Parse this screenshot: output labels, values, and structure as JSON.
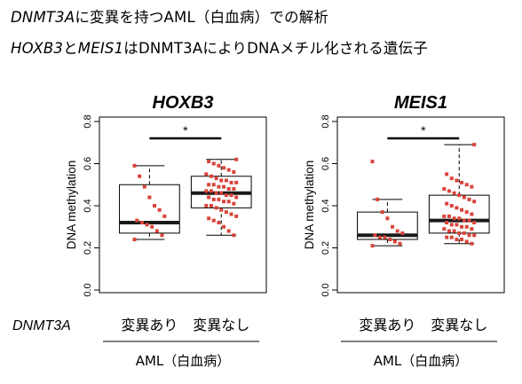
{
  "headline": {
    "line1_gene": "DNMT3A",
    "line1_rest": "に変異を持つAML（白血病）での解析",
    "line2_gene1": "HOXB3",
    "line2_and": "と",
    "line2_gene2": "MEIS1",
    "line2_rest": "はDNMT3AによりDNAメチル化される遺伝子"
  },
  "row_label": "DNMT3A",
  "colors": {
    "point": "#d9443a",
    "box": "#000000",
    "median": "#1a1a1a"
  },
  "chart_data": [
    {
      "type": "box",
      "title": "HOXB3",
      "ylabel": "DNA methylation",
      "ylim": [
        0,
        0.8
      ],
      "yticks": [
        "0.0",
        "0.2",
        "0.4",
        "0.6",
        "0.8"
      ],
      "yticks_values": [
        0,
        0.2,
        0.4,
        0.6,
        0.8
      ],
      "categories": [
        "変異あり",
        "変異なし"
      ],
      "group_label": "AML（白血病）",
      "significance": "*",
      "boxes": [
        {
          "whisker_low": 0.24,
          "q1": 0.27,
          "median": 0.32,
          "q3": 0.5,
          "whisker_high": 0.59,
          "points": [
            0.24,
            0.26,
            0.28,
            0.3,
            0.31,
            0.32,
            0.33,
            0.35,
            0.38,
            0.4,
            0.44,
            0.49,
            0.54,
            0.59
          ]
        },
        {
          "whisker_low": 0.26,
          "q1": 0.39,
          "median": 0.46,
          "q3": 0.54,
          "whisker_high": 0.62,
          "points": [
            0.26,
            0.28,
            0.3,
            0.32,
            0.33,
            0.34,
            0.35,
            0.36,
            0.37,
            0.38,
            0.39,
            0.4,
            0.4,
            0.41,
            0.42,
            0.42,
            0.43,
            0.43,
            0.44,
            0.44,
            0.45,
            0.45,
            0.46,
            0.46,
            0.47,
            0.47,
            0.48,
            0.48,
            0.49,
            0.49,
            0.5,
            0.5,
            0.51,
            0.51,
            0.52,
            0.52,
            0.53,
            0.54,
            0.55,
            0.56,
            0.57,
            0.58,
            0.59,
            0.6,
            0.61,
            0.62
          ]
        }
      ]
    },
    {
      "type": "box",
      "title": "MEIS1",
      "ylabel": "DNA methylation",
      "ylim": [
        0,
        0.8
      ],
      "yticks": [
        "0.0",
        "0.2",
        "0.4",
        "0.6",
        "0.8"
      ],
      "yticks_values": [
        0,
        0.2,
        0.4,
        0.6,
        0.8
      ],
      "categories": [
        "変異あり",
        "変異なし"
      ],
      "group_label": "AML（白血病）",
      "significance": "*",
      "boxes": [
        {
          "whisker_low": 0.21,
          "q1": 0.24,
          "median": 0.26,
          "q3": 0.37,
          "whisker_high": 0.43,
          "points": [
            0.21,
            0.22,
            0.23,
            0.24,
            0.25,
            0.25,
            0.26,
            0.27,
            0.28,
            0.3,
            0.34,
            0.37,
            0.43,
            0.61
          ]
        },
        {
          "whisker_low": 0.22,
          "q1": 0.27,
          "median": 0.33,
          "q3": 0.45,
          "whisker_high": 0.69,
          "points": [
            0.22,
            0.23,
            0.24,
            0.24,
            0.25,
            0.25,
            0.26,
            0.26,
            0.27,
            0.27,
            0.28,
            0.28,
            0.29,
            0.29,
            0.3,
            0.3,
            0.31,
            0.31,
            0.32,
            0.32,
            0.33,
            0.33,
            0.34,
            0.34,
            0.35,
            0.35,
            0.36,
            0.37,
            0.38,
            0.39,
            0.4,
            0.41,
            0.42,
            0.43,
            0.44,
            0.45,
            0.46,
            0.47,
            0.48,
            0.49,
            0.5,
            0.51,
            0.52,
            0.53,
            0.55,
            0.69
          ]
        }
      ]
    }
  ]
}
